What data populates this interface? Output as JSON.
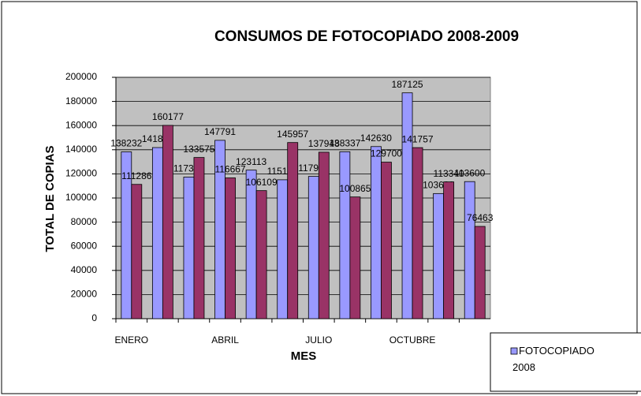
{
  "chart_data": {
    "type": "bar",
    "title": "CONSUMOS DE FOTOCOPIADO 2008-2009",
    "xlabel": "MES",
    "ylabel": "TOTAL DE COPIAS",
    "categories": [
      "ENERO",
      null,
      null,
      "ABRIL",
      null,
      null,
      "JULIO",
      null,
      null,
      "OCTUBRE",
      null,
      null
    ],
    "series": [
      {
        "name": "FOTOCOPIADO 2008",
        "color": "#9999ff",
        "values": [
          138232,
          141800,
          117342,
          147791,
          123113,
          115107,
          117903,
          138337,
          142630,
          187125,
          103689,
          113600
        ]
      },
      {
        "color": "#993366",
        "values": [
          111286,
          160177,
          133575,
          116667,
          106109,
          145957,
          137948,
          100865,
          129700,
          141757,
          113340,
          76463
        ]
      }
    ],
    "ylim": [
      0,
      200000
    ],
    "yticks": [
      0,
      20000,
      40000,
      60000,
      80000,
      100000,
      120000,
      140000,
      160000,
      180000,
      200000
    ],
    "grid": true,
    "legend": "bottom-right"
  }
}
